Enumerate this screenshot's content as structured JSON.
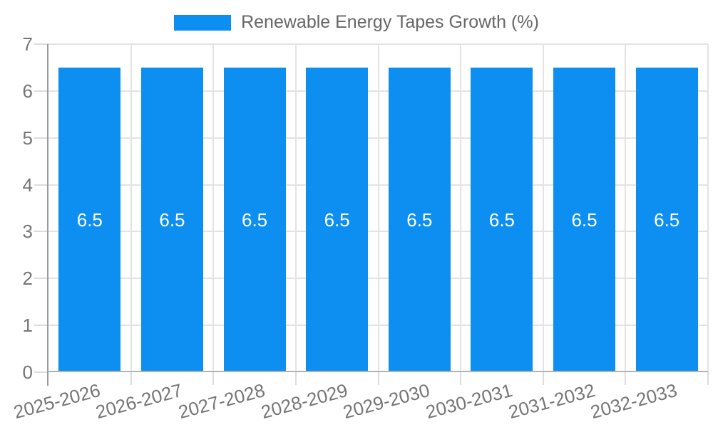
{
  "legend": {
    "label": "Renewable Energy Tapes Growth (%)"
  },
  "colors": {
    "background": "#ffffff",
    "bar": "#0d8ff2",
    "grid": "#e3e3e3",
    "tick_line": "#dcdcdc",
    "axis_line": "#9a9a9a",
    "baseline": "#b2b2b2",
    "legend_text": "#666666",
    "tick_text": "#757575",
    "bar_label_text": "#ffffff"
  },
  "chart_data": {
    "type": "bar",
    "title": "Renewable Energy Tapes Growth (%)",
    "series_name": "Renewable Energy Tapes Growth (%)",
    "categories": [
      "2025-2026",
      "2026-2027",
      "2027-2028",
      "2028-2029",
      "2029-2030",
      "2030-2031",
      "2031-2032",
      "2032-2033"
    ],
    "values": [
      6.5,
      6.5,
      6.5,
      6.5,
      6.5,
      6.5,
      6.5,
      6.5
    ],
    "bar_labels": [
      "6.5",
      "6.5",
      "6.5",
      "6.5",
      "6.5",
      "6.5",
      "6.5",
      "6.5"
    ],
    "xlabel": "",
    "ylabel": "",
    "ylim": [
      0,
      7
    ],
    "yticks": [
      0,
      1,
      2,
      3,
      4,
      5,
      6,
      7
    ],
    "grid": true,
    "legend_position": "top-center",
    "value_labels_position": "inside-center",
    "x_tick_rotation_deg": -15
  }
}
